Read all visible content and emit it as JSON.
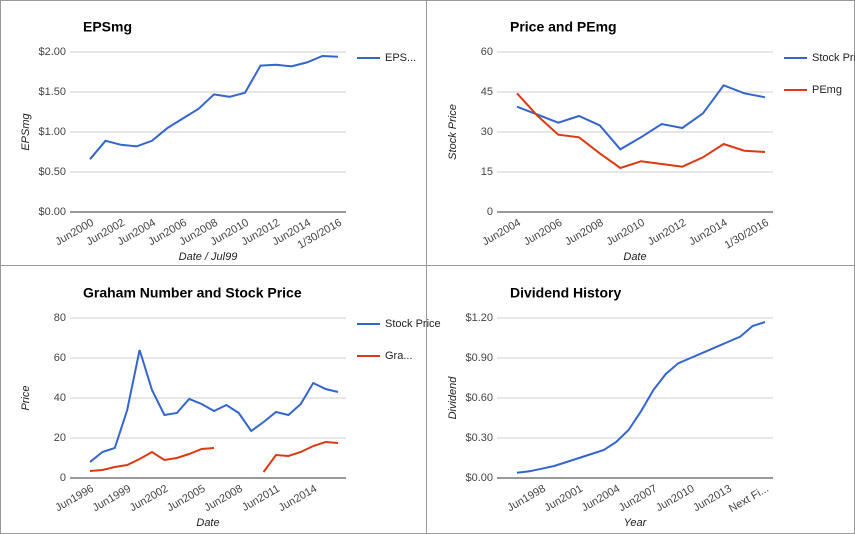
{
  "chart_data": [
    {
      "type": "line",
      "title": "EPSmg",
      "x_label": "Date / Jul99",
      "y_label": "EPSmg",
      "categories": [
        "Jun2000",
        null,
        "Jun2002",
        null,
        "Jun2004",
        null,
        "Jun2006",
        null,
        "Jun2008",
        null,
        "Jun2010",
        null,
        "Jun2012",
        null,
        "Jun2014",
        null,
        "1/30/2016"
      ],
      "series": [
        {
          "name": "EPS...",
          "color": "#3366cc",
          "values": [
            0.66,
            0.89,
            0.84,
            0.82,
            0.89,
            1.05,
            1.17,
            1.29,
            1.47,
            1.44,
            1.49,
            1.83,
            1.84,
            1.82,
            1.87,
            1.95,
            1.94
          ]
        }
      ],
      "ylim": [
        0,
        2
      ],
      "yticks": [
        {
          "value": 0,
          "label": "$0.00"
        },
        {
          "value": 0.5,
          "label": "$0.50"
        },
        {
          "value": 1,
          "label": "$1.00"
        },
        {
          "value": 1.5,
          "label": "$1.50"
        },
        {
          "value": 2,
          "label": "$2.00"
        }
      ],
      "grid": true
    },
    {
      "type": "line",
      "title": "Price and PEmg",
      "x_label": "Date",
      "y_label": "Stock Price",
      "categories": [
        "Jun2004",
        null,
        "Jun2006",
        null,
        "Jun2008",
        null,
        "Jun2010",
        null,
        "Jun2012",
        null,
        "Jun2014",
        null,
        "1/30/2016"
      ],
      "series": [
        {
          "name": "Stock Price",
          "color": "#3366cc",
          "values": [
            39.5,
            36.5,
            33.5,
            36,
            32.5,
            23.5,
            28,
            33,
            31.5,
            37,
            47.5,
            44.5,
            43
          ]
        },
        {
          "name": "PEmg",
          "color": "#dc3912",
          "values": [
            44.5,
            36,
            29,
            28,
            22,
            16.5,
            19,
            18,
            17,
            20.5,
            25.5,
            23,
            22.5
          ]
        }
      ],
      "ylim": [
        0,
        60
      ],
      "yticks": [
        0,
        15,
        30,
        45,
        60
      ],
      "grid": true
    },
    {
      "type": "line",
      "title": "Graham Number and Stock Price",
      "x_label": "Date",
      "y_label": "Price",
      "categories": [
        "Jun1996",
        null,
        null,
        "Jun1999",
        null,
        null,
        "Jun2002",
        null,
        null,
        "Jun2005",
        null,
        null,
        "Jun2008",
        null,
        null,
        "Jun2011",
        null,
        null,
        "Jun2014",
        null,
        null
      ],
      "series": [
        {
          "name": "Stock Price",
          "color": "#3366cc",
          "values": [
            8,
            13,
            15,
            34,
            64,
            44,
            31.5,
            32.5,
            39.5,
            37,
            33.5,
            36.5,
            32.5,
            23.5,
            28,
            33,
            31.5,
            37,
            47.5,
            44.5,
            43
          ]
        },
        {
          "name": "Gra...",
          "color": "#dc3912",
          "values": [
            3.5,
            4,
            5.5,
            6.5,
            9.5,
            13,
            9,
            10,
            12,
            14.5,
            15,
            null,
            null,
            null,
            3,
            11.5,
            11,
            13,
            16,
            18,
            17.5
          ]
        }
      ],
      "ylim": [
        0,
        80
      ],
      "yticks": [
        0,
        20,
        40,
        60,
        80
      ],
      "grid": true
    },
    {
      "type": "line",
      "title": "Dividend History",
      "x_label": "Year",
      "y_label": "Dividend",
      "categories": [
        null,
        null,
        "Jun1998",
        null,
        null,
        "Jun2001",
        null,
        null,
        "Jun2004",
        null,
        null,
        "Jun2007",
        null,
        null,
        "Jun2010",
        null,
        null,
        "Jun2013",
        null,
        null,
        "Next Fi..."
      ],
      "series": [
        {
          "color": "#3366cc",
          "values": [
            0.04,
            0.05,
            0.07,
            0.09,
            0.12,
            0.15,
            0.18,
            0.21,
            0.27,
            0.36,
            0.5,
            0.66,
            0.78,
            0.86,
            0.9,
            0.94,
            0.98,
            1.02,
            1.06,
            1.14,
            1.17
          ]
        }
      ],
      "ylim": [
        0,
        1.2
      ],
      "yticks": [
        {
          "value": 0,
          "label": "$0.00"
        },
        {
          "value": 0.3,
          "label": "$0.30"
        },
        {
          "value": 0.6,
          "label": "$0.60"
        },
        {
          "value": 0.9,
          "label": "$0.90"
        },
        {
          "value": 1.2,
          "label": "$1.20"
        }
      ],
      "grid": true
    }
  ]
}
